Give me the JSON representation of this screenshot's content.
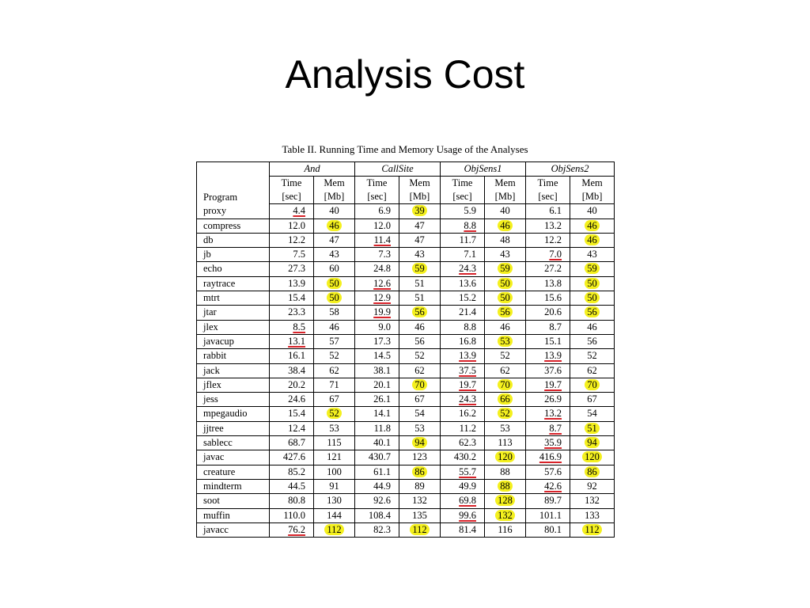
{
  "slide": {
    "title": "Analysis Cost"
  },
  "table": {
    "caption": "Table II.  Running Time and Memory Usage of the Analyses",
    "program_header": "Program",
    "groups": [
      "And",
      "CallSite",
      "ObjSens1",
      "ObjSens2"
    ],
    "subcolumns": {
      "time_top": "Time",
      "time_bottom": "[sec]",
      "mem_top": "Mem",
      "mem_bottom": "[Mb]"
    },
    "marks_legend": {
      "highlight_color": "#f4f01e",
      "underline_color": "#d8232a"
    },
    "rows": [
      {
        "program": "proxy",
        "cells": [
          {
            "v": "4.4",
            "u": true
          },
          {
            "v": "40"
          },
          {
            "v": "6.9"
          },
          {
            "v": "39",
            "h": true
          },
          {
            "v": "5.9"
          },
          {
            "v": "40"
          },
          {
            "v": "6.1"
          },
          {
            "v": "40"
          }
        ]
      },
      {
        "program": "compress",
        "cells": [
          {
            "v": "12.0"
          },
          {
            "v": "46",
            "h": true
          },
          {
            "v": "12.0"
          },
          {
            "v": "47"
          },
          {
            "v": "8.8",
            "u": true
          },
          {
            "v": "46",
            "h": true
          },
          {
            "v": "13.2"
          },
          {
            "v": "46",
            "h": true
          }
        ]
      },
      {
        "program": "db",
        "cells": [
          {
            "v": "12.2"
          },
          {
            "v": "47"
          },
          {
            "v": "11.4",
            "u": true
          },
          {
            "v": "47"
          },
          {
            "v": "11.7"
          },
          {
            "v": "48"
          },
          {
            "v": "12.2"
          },
          {
            "v": "46",
            "h": true
          }
        ]
      },
      {
        "program": "jb",
        "cells": [
          {
            "v": "7.5"
          },
          {
            "v": "43"
          },
          {
            "v": "7.3"
          },
          {
            "v": "43"
          },
          {
            "v": "7.1"
          },
          {
            "v": "43"
          },
          {
            "v": "7.0",
            "u": true
          },
          {
            "v": "43"
          }
        ]
      },
      {
        "program": "echo",
        "cells": [
          {
            "v": "27.3"
          },
          {
            "v": "60"
          },
          {
            "v": "24.8"
          },
          {
            "v": "59",
            "h": true
          },
          {
            "v": "24.3",
            "u": true
          },
          {
            "v": "59",
            "h": true
          },
          {
            "v": "27.2"
          },
          {
            "v": "59",
            "h": true
          }
        ]
      },
      {
        "program": "raytrace",
        "cells": [
          {
            "v": "13.9"
          },
          {
            "v": "50",
            "h": true
          },
          {
            "v": "12.6",
            "u": true
          },
          {
            "v": "51"
          },
          {
            "v": "13.6"
          },
          {
            "v": "50",
            "h": true
          },
          {
            "v": "13.8"
          },
          {
            "v": "50",
            "h": true
          }
        ]
      },
      {
        "program": "mtrt",
        "cells": [
          {
            "v": "15.4"
          },
          {
            "v": "50",
            "h": true
          },
          {
            "v": "12.9",
            "u": true
          },
          {
            "v": "51"
          },
          {
            "v": "15.2"
          },
          {
            "v": "50",
            "h": true
          },
          {
            "v": "15.6"
          },
          {
            "v": "50",
            "h": true
          }
        ]
      },
      {
        "program": "jtar",
        "cells": [
          {
            "v": "23.3"
          },
          {
            "v": "58"
          },
          {
            "v": "19.9",
            "u": true
          },
          {
            "v": "56",
            "h": true
          },
          {
            "v": "21.4"
          },
          {
            "v": "56",
            "h": true
          },
          {
            "v": "20.6"
          },
          {
            "v": "56",
            "h": true
          }
        ]
      },
      {
        "program": "jlex",
        "cells": [
          {
            "v": "8.5",
            "u": true
          },
          {
            "v": "46"
          },
          {
            "v": "9.0"
          },
          {
            "v": "46"
          },
          {
            "v": "8.8"
          },
          {
            "v": "46"
          },
          {
            "v": "8.7"
          },
          {
            "v": "46"
          }
        ]
      },
      {
        "program": "javacup",
        "cells": [
          {
            "v": "13.1",
            "u": true
          },
          {
            "v": "57"
          },
          {
            "v": "17.3"
          },
          {
            "v": "56"
          },
          {
            "v": "16.8"
          },
          {
            "v": "53",
            "h": true
          },
          {
            "v": "15.1"
          },
          {
            "v": "56"
          }
        ]
      },
      {
        "program": "rabbit",
        "cells": [
          {
            "v": "16.1"
          },
          {
            "v": "52"
          },
          {
            "v": "14.5"
          },
          {
            "v": "52"
          },
          {
            "v": "13.9",
            "u": true
          },
          {
            "v": "52"
          },
          {
            "v": "13.9",
            "u": true
          },
          {
            "v": "52"
          }
        ]
      },
      {
        "program": "jack",
        "cells": [
          {
            "v": "38.4"
          },
          {
            "v": "62"
          },
          {
            "v": "38.1"
          },
          {
            "v": "62"
          },
          {
            "v": "37.5",
            "u": true
          },
          {
            "v": "62"
          },
          {
            "v": "37.6"
          },
          {
            "v": "62"
          }
        ]
      },
      {
        "program": "jflex",
        "cells": [
          {
            "v": "20.2"
          },
          {
            "v": "71"
          },
          {
            "v": "20.1"
          },
          {
            "v": "70",
            "h": true
          },
          {
            "v": "19.7",
            "u": true
          },
          {
            "v": "70",
            "h": true
          },
          {
            "v": "19.7",
            "u": true
          },
          {
            "v": "70",
            "h": true
          }
        ]
      },
      {
        "program": "jess",
        "cells": [
          {
            "v": "24.6"
          },
          {
            "v": "67"
          },
          {
            "v": "26.1"
          },
          {
            "v": "67"
          },
          {
            "v": "24.3",
            "u": true
          },
          {
            "v": "66",
            "h": true
          },
          {
            "v": "26.9"
          },
          {
            "v": "67"
          }
        ]
      },
      {
        "program": "mpegaudio",
        "cells": [
          {
            "v": "15.4"
          },
          {
            "v": "52",
            "h": true
          },
          {
            "v": "14.1"
          },
          {
            "v": "54"
          },
          {
            "v": "16.2"
          },
          {
            "v": "52",
            "h": true
          },
          {
            "v": "13.2",
            "u": true
          },
          {
            "v": "54"
          }
        ]
      },
      {
        "program": "jjtree",
        "cells": [
          {
            "v": "12.4"
          },
          {
            "v": "53"
          },
          {
            "v": "11.8"
          },
          {
            "v": "53"
          },
          {
            "v": "11.2"
          },
          {
            "v": "53"
          },
          {
            "v": "8.7",
            "u": true
          },
          {
            "v": "51",
            "h": true
          }
        ]
      },
      {
        "program": "sablecc",
        "cells": [
          {
            "v": "68.7"
          },
          {
            "v": "115"
          },
          {
            "v": "40.1"
          },
          {
            "v": "94",
            "h": true
          },
          {
            "v": "62.3"
          },
          {
            "v": "113"
          },
          {
            "v": "35.9",
            "u": true
          },
          {
            "v": "94",
            "h": true
          }
        ]
      },
      {
        "program": "javac",
        "cells": [
          {
            "v": "427.6"
          },
          {
            "v": "121"
          },
          {
            "v": "430.7"
          },
          {
            "v": "123"
          },
          {
            "v": "430.2"
          },
          {
            "v": "120",
            "h": true
          },
          {
            "v": "416.9",
            "u": true
          },
          {
            "v": "120",
            "h": true
          }
        ]
      },
      {
        "program": "creature",
        "cells": [
          {
            "v": "85.2"
          },
          {
            "v": "100"
          },
          {
            "v": "61.1"
          },
          {
            "v": "86",
            "h": true
          },
          {
            "v": "55.7",
            "u": true
          },
          {
            "v": "88"
          },
          {
            "v": "57.6"
          },
          {
            "v": "86",
            "h": true
          }
        ]
      },
      {
        "program": "mindterm",
        "cells": [
          {
            "v": "44.5"
          },
          {
            "v": "91"
          },
          {
            "v": "44.9"
          },
          {
            "v": "89"
          },
          {
            "v": "49.9"
          },
          {
            "v": "88",
            "h": true
          },
          {
            "v": "42.6",
            "u": true
          },
          {
            "v": "92"
          }
        ]
      },
      {
        "program": "soot",
        "cells": [
          {
            "v": "80.8"
          },
          {
            "v": "130"
          },
          {
            "v": "92.6"
          },
          {
            "v": "132"
          },
          {
            "v": "69.8",
            "u": true
          },
          {
            "v": "128",
            "h": true
          },
          {
            "v": "89.7"
          },
          {
            "v": "132"
          }
        ]
      },
      {
        "program": "muffin",
        "cells": [
          {
            "v": "110.0"
          },
          {
            "v": "144"
          },
          {
            "v": "108.4"
          },
          {
            "v": "135"
          },
          {
            "v": "99.6",
            "u": true
          },
          {
            "v": "132",
            "h": true
          },
          {
            "v": "101.1"
          },
          {
            "v": "133"
          }
        ]
      },
      {
        "program": "javacc",
        "cells": [
          {
            "v": "76.2",
            "u": true
          },
          {
            "v": "112",
            "h": true
          },
          {
            "v": "82.3"
          },
          {
            "v": "112",
            "h": true
          },
          {
            "v": "81.4"
          },
          {
            "v": "116"
          },
          {
            "v": "80.1"
          },
          {
            "v": "112",
            "h": true
          }
        ]
      }
    ]
  }
}
